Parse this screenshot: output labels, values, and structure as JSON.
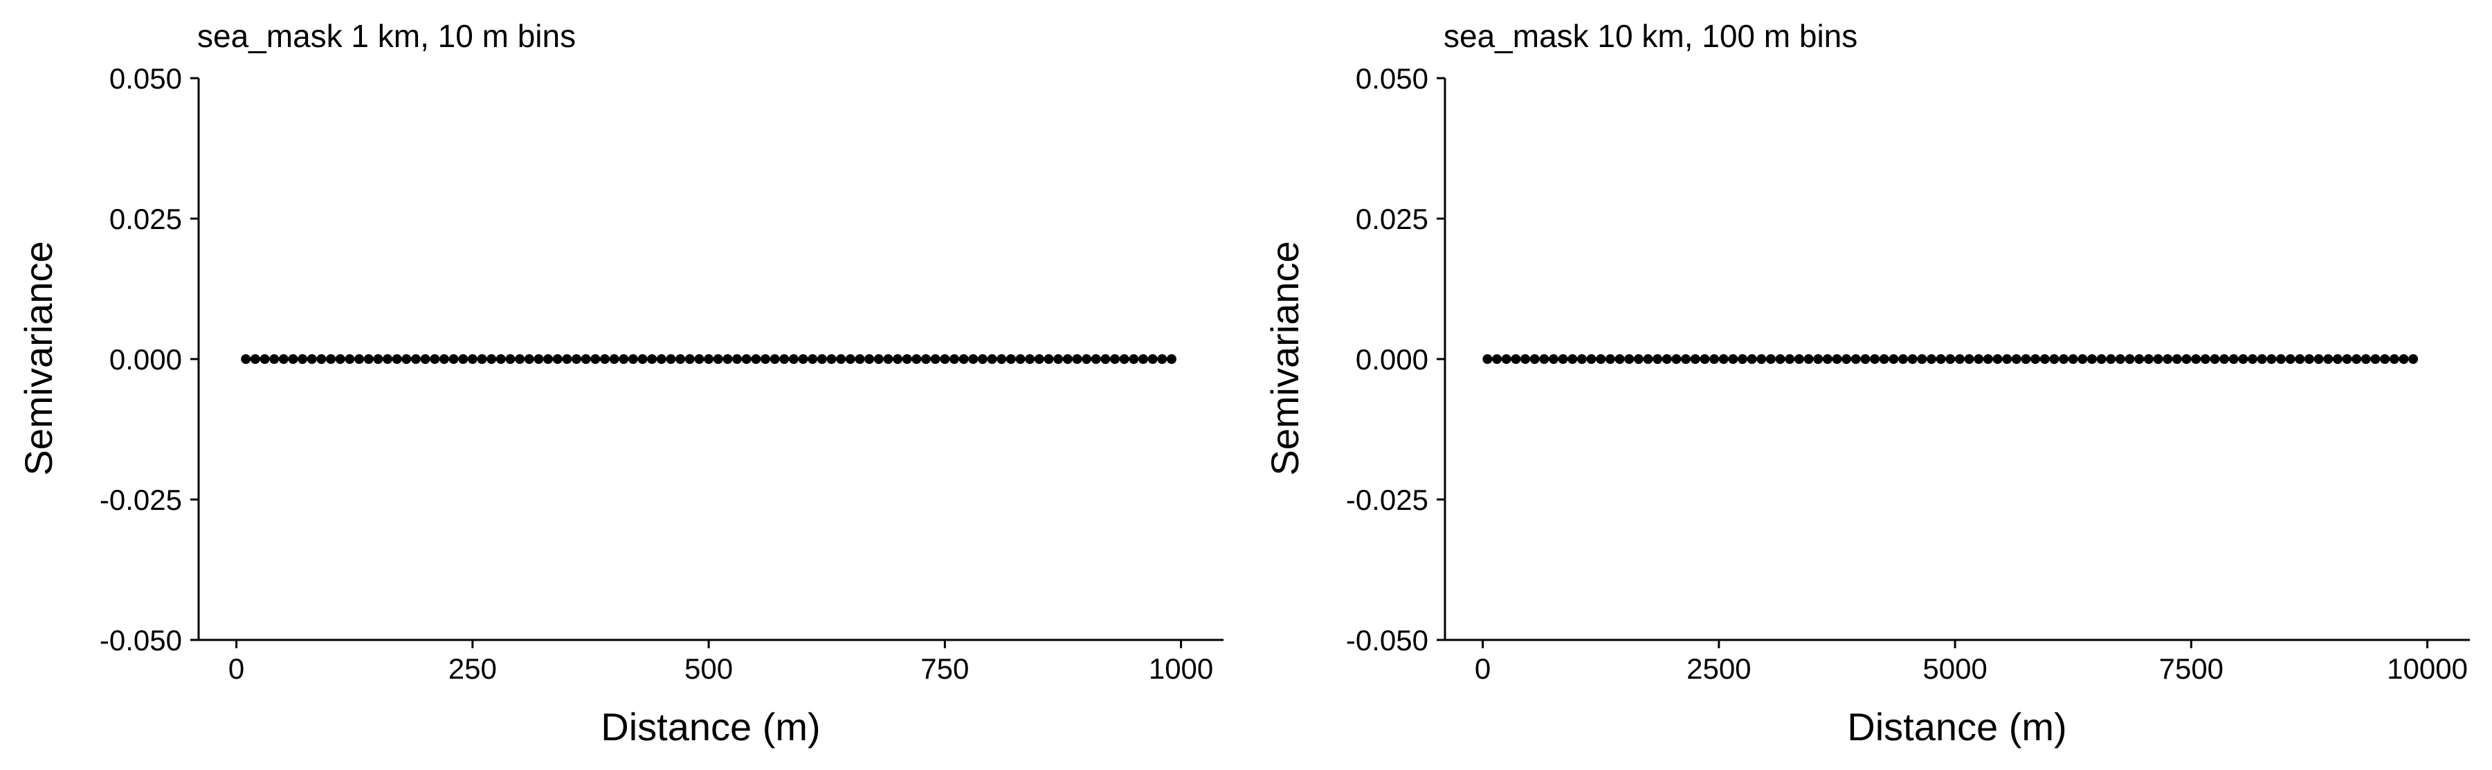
{
  "chart_data": [
    {
      "type": "scatter",
      "title": "sea_mask 1 km, 10 m bins",
      "xlabel": "Distance (m)",
      "ylabel": "Semivariance",
      "xlim": [
        -40,
        1045
      ],
      "ylim": [
        -0.05,
        0.05
      ],
      "xticks": [
        0,
        250,
        500,
        750,
        1000
      ],
      "xtick_labels": [
        "0",
        "250",
        "500",
        "750",
        "1000"
      ],
      "yticks": [
        0.05,
        0.025,
        0.0,
        -0.025,
        -0.05
      ],
      "ytick_labels": [
        "0.050",
        "0.025",
        "0.000",
        "-0.025",
        "-0.050"
      ],
      "grid": false,
      "series": [
        {
          "x_start": 10,
          "x_step": 10,
          "count": 99,
          "y_constant": 0.0
        }
      ]
    },
    {
      "type": "scatter",
      "title": "sea_mask 10 km, 100 m bins",
      "xlabel": "Distance (m)",
      "ylabel": "Semivariance",
      "xlim": [
        -400,
        10450
      ],
      "ylim": [
        -0.05,
        0.05
      ],
      "xticks": [
        0,
        2500,
        5000,
        7500,
        10000
      ],
      "xtick_labels": [
        "0",
        "2500",
        "5000",
        "7500",
        "10000"
      ],
      "yticks": [
        0.05,
        0.025,
        0.0,
        -0.025,
        -0.05
      ],
      "ytick_labels": [
        "0.050",
        "0.025",
        "0.000",
        "-0.025",
        "-0.050"
      ],
      "grid": false,
      "series": [
        {
          "x_start": 50,
          "x_step": 100,
          "count": 99,
          "y_constant": 0.0
        }
      ]
    }
  ],
  "colors": {
    "points": "#000000",
    "axes": "#000000",
    "background": "#ffffff"
  }
}
